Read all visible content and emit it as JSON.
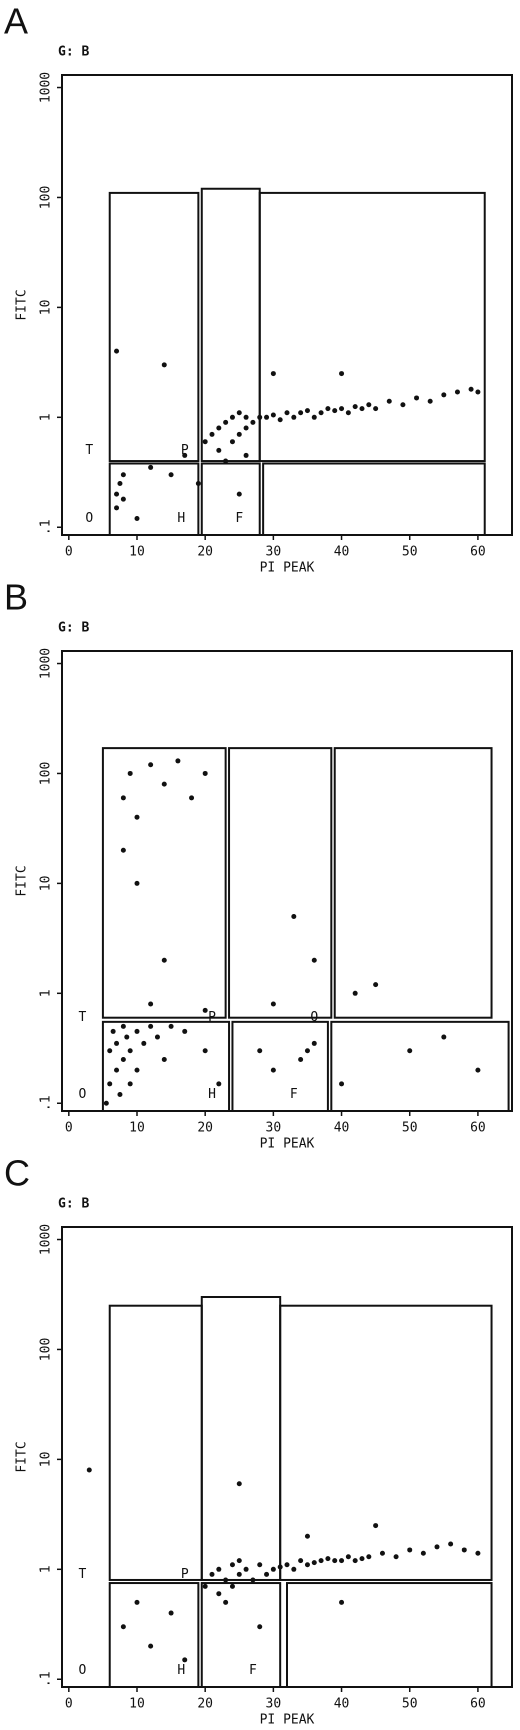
{
  "chart_data": [
    {
      "type": "scatter",
      "panel": "A",
      "subtitle": "G: B",
      "x_label": "PI PEAK",
      "y_label": "FITC",
      "log_y": true,
      "color": "#111111",
      "xlim": [
        -1,
        65
      ],
      "ylim": [
        0.085,
        1300
      ],
      "xticks": [
        0,
        10,
        20,
        30,
        40,
        50,
        60
      ],
      "yticks": [
        {
          "value": 0.1,
          "label": ".1"
        },
        1,
        10,
        100,
        1000
      ],
      "gates": [
        {
          "x": [
            6,
            19
          ],
          "y": [
            0.4,
            110
          ]
        },
        {
          "x": [
            19.5,
            28
          ],
          "y": [
            0.4,
            120
          ]
        },
        {
          "x": [
            28,
            61
          ],
          "y": [
            0.4,
            110
          ]
        },
        {
          "x": [
            6,
            19
          ],
          "y": [
            0.085,
            0.38
          ]
        },
        {
          "x": [
            19.5,
            28
          ],
          "y": [
            0.085,
            0.38
          ]
        },
        {
          "x": [
            28.5,
            61
          ],
          "y": [
            0.085,
            0.38
          ]
        }
      ],
      "annotations": [
        {
          "text": "T",
          "x": 3,
          "y": 0.5
        },
        {
          "text": "P",
          "x": 17,
          "y": 0.5
        },
        {
          "text": "O",
          "x": 3,
          "y": 0.12
        },
        {
          "text": "H",
          "x": 16.5,
          "y": 0.12
        },
        {
          "text": "F",
          "x": 25,
          "y": 0.12
        }
      ],
      "x": [
        7,
        7,
        7.5,
        8,
        8,
        10,
        12,
        15,
        17,
        19,
        20,
        21,
        22,
        22,
        23,
        24,
        24,
        25,
        25,
        26,
        26,
        27,
        28,
        29,
        30,
        31,
        32,
        33,
        34,
        35,
        36,
        37,
        38,
        39,
        40,
        41,
        42,
        43,
        44,
        45,
        47,
        49,
        51,
        53,
        55,
        57,
        59,
        60,
        7,
        14,
        30,
        25,
        40,
        23,
        26
      ],
      "values": [
        0.15,
        0.2,
        0.25,
        0.18,
        0.3,
        0.12,
        0.35,
        0.3,
        0.45,
        0.25,
        0.6,
        0.7,
        0.5,
        0.8,
        0.9,
        0.6,
        1.0,
        0.7,
        1.1,
        0.8,
        1.0,
        0.9,
        1.0,
        1.0,
        1.05,
        0.95,
        1.1,
        1.0,
        1.1,
        1.15,
        1.0,
        1.1,
        1.2,
        1.15,
        1.2,
        1.1,
        1.25,
        1.2,
        1.3,
        1.2,
        1.4,
        1.3,
        1.5,
        1.4,
        1.6,
        1.7,
        1.8,
        1.7,
        4,
        3,
        2.5,
        0.2,
        2.5,
        0.4,
        0.45
      ]
    },
    {
      "type": "scatter",
      "panel": "B",
      "subtitle": "G: B",
      "x_label": "PI PEAK",
      "y_label": "FITC",
      "log_y": true,
      "color": "#111111",
      "xlim": [
        -1,
        65
      ],
      "ylim": [
        0.085,
        1300
      ],
      "xticks": [
        0,
        10,
        20,
        30,
        40,
        50,
        60
      ],
      "yticks": [
        {
          "value": 0.1,
          "label": ".1"
        },
        1,
        10,
        100,
        1000
      ],
      "gates": [
        {
          "x": [
            5,
            23
          ],
          "y": [
            0.6,
            170
          ]
        },
        {
          "x": [
            23.5,
            38.5
          ],
          "y": [
            0.6,
            170
          ]
        },
        {
          "x": [
            39,
            62
          ],
          "y": [
            0.6,
            170
          ]
        },
        {
          "x": [
            5,
            23.5
          ],
          "y": [
            0.085,
            0.55
          ]
        },
        {
          "x": [
            24,
            38
          ],
          "y": [
            0.085,
            0.55
          ]
        },
        {
          "x": [
            38.5,
            64.5
          ],
          "y": [
            0.085,
            0.55
          ]
        }
      ],
      "annotations": [
        {
          "text": "T",
          "x": 2,
          "y": 0.6
        },
        {
          "text": "P",
          "x": 21,
          "y": 0.6
        },
        {
          "text": "Q",
          "x": 36,
          "y": 0.6
        },
        {
          "text": "O",
          "x": 2,
          "y": 0.12
        },
        {
          "text": "H",
          "x": 21,
          "y": 0.12
        },
        {
          "text": "F",
          "x": 33,
          "y": 0.12
        }
      ],
      "x": [
        5.5,
        6,
        6,
        6.5,
        7,
        7,
        7.5,
        8,
        8,
        8.5,
        9,
        9,
        10,
        10,
        11,
        12,
        13,
        14,
        15,
        17,
        20,
        22,
        8,
        9,
        10,
        12,
        14,
        16,
        18,
        20,
        8,
        10,
        14,
        12,
        20,
        28,
        30,
        35,
        34,
        36,
        30,
        33,
        36,
        42,
        45,
        50,
        55,
        60,
        40
      ],
      "values": [
        0.1,
        0.15,
        0.3,
        0.45,
        0.2,
        0.35,
        0.12,
        0.25,
        0.5,
        0.4,
        0.3,
        0.15,
        0.45,
        0.2,
        0.35,
        0.5,
        0.4,
        0.25,
        0.5,
        0.45,
        0.3,
        0.15,
        60,
        100,
        40,
        120,
        80,
        130,
        60,
        100,
        20,
        10,
        2,
        0.8,
        0.7,
        0.3,
        0.2,
        0.3,
        0.25,
        0.35,
        0.8,
        5,
        2,
        1,
        1.2,
        0.3,
        0.4,
        0.2,
        0.15
      ]
    },
    {
      "type": "scatter",
      "panel": "C",
      "subtitle": "G: B",
      "x_label": "PI PEAK",
      "y_label": "FITC",
      "log_y": true,
      "color": "#111111",
      "xlim": [
        -1,
        65
      ],
      "ylim": [
        0.085,
        1300
      ],
      "xticks": [
        0,
        10,
        20,
        30,
        40,
        50,
        60
      ],
      "yticks": [
        {
          "value": 0.1,
          "label": ".1"
        },
        1,
        10,
        100,
        1000
      ],
      "gates": [
        {
          "x": [
            6,
            19.5
          ],
          "y": [
            0.8,
            250
          ]
        },
        {
          "x": [
            19.5,
            31
          ],
          "y": [
            0.8,
            300
          ]
        },
        {
          "x": [
            31,
            62
          ],
          "y": [
            0.8,
            250
          ]
        },
        {
          "x": [
            6,
            19
          ],
          "y": [
            0.085,
            0.75
          ]
        },
        {
          "x": [
            19.5,
            31
          ],
          "y": [
            0.085,
            0.75
          ]
        },
        {
          "x": [
            32,
            62
          ],
          "y": [
            0.085,
            0.75
          ]
        }
      ],
      "annotations": [
        {
          "text": "T",
          "x": 2,
          "y": 0.9
        },
        {
          "text": "P",
          "x": 17,
          "y": 0.9
        },
        {
          "text": "O",
          "x": 2,
          "y": 0.12
        },
        {
          "text": "H",
          "x": 16.5,
          "y": 0.12
        },
        {
          "text": "F",
          "x": 27,
          "y": 0.12
        }
      ],
      "x": [
        3,
        8,
        10,
        12,
        15,
        17,
        20,
        21,
        22,
        22,
        23,
        23,
        24,
        24,
        25,
        25,
        26,
        27,
        28,
        29,
        30,
        31,
        32,
        33,
        34,
        35,
        36,
        37,
        38,
        39,
        40,
        41,
        42,
        43,
        44,
        46,
        48,
        50,
        52,
        54,
        56,
        58,
        60,
        25,
        35,
        28,
        40,
        45
      ],
      "values": [
        8,
        0.3,
        0.5,
        0.2,
        0.4,
        0.15,
        0.7,
        0.9,
        0.6,
        1.0,
        0.5,
        0.8,
        1.1,
        0.7,
        0.9,
        1.2,
        1.0,
        0.8,
        1.1,
        0.9,
        1.0,
        1.05,
        1.1,
        1.0,
        1.2,
        1.1,
        1.15,
        1.2,
        1.25,
        1.2,
        1.2,
        1.3,
        1.2,
        1.25,
        1.3,
        1.4,
        1.3,
        1.5,
        1.4,
        1.6,
        1.7,
        1.5,
        1.4,
        6,
        2,
        0.3,
        0.5,
        2.5
      ]
    }
  ]
}
